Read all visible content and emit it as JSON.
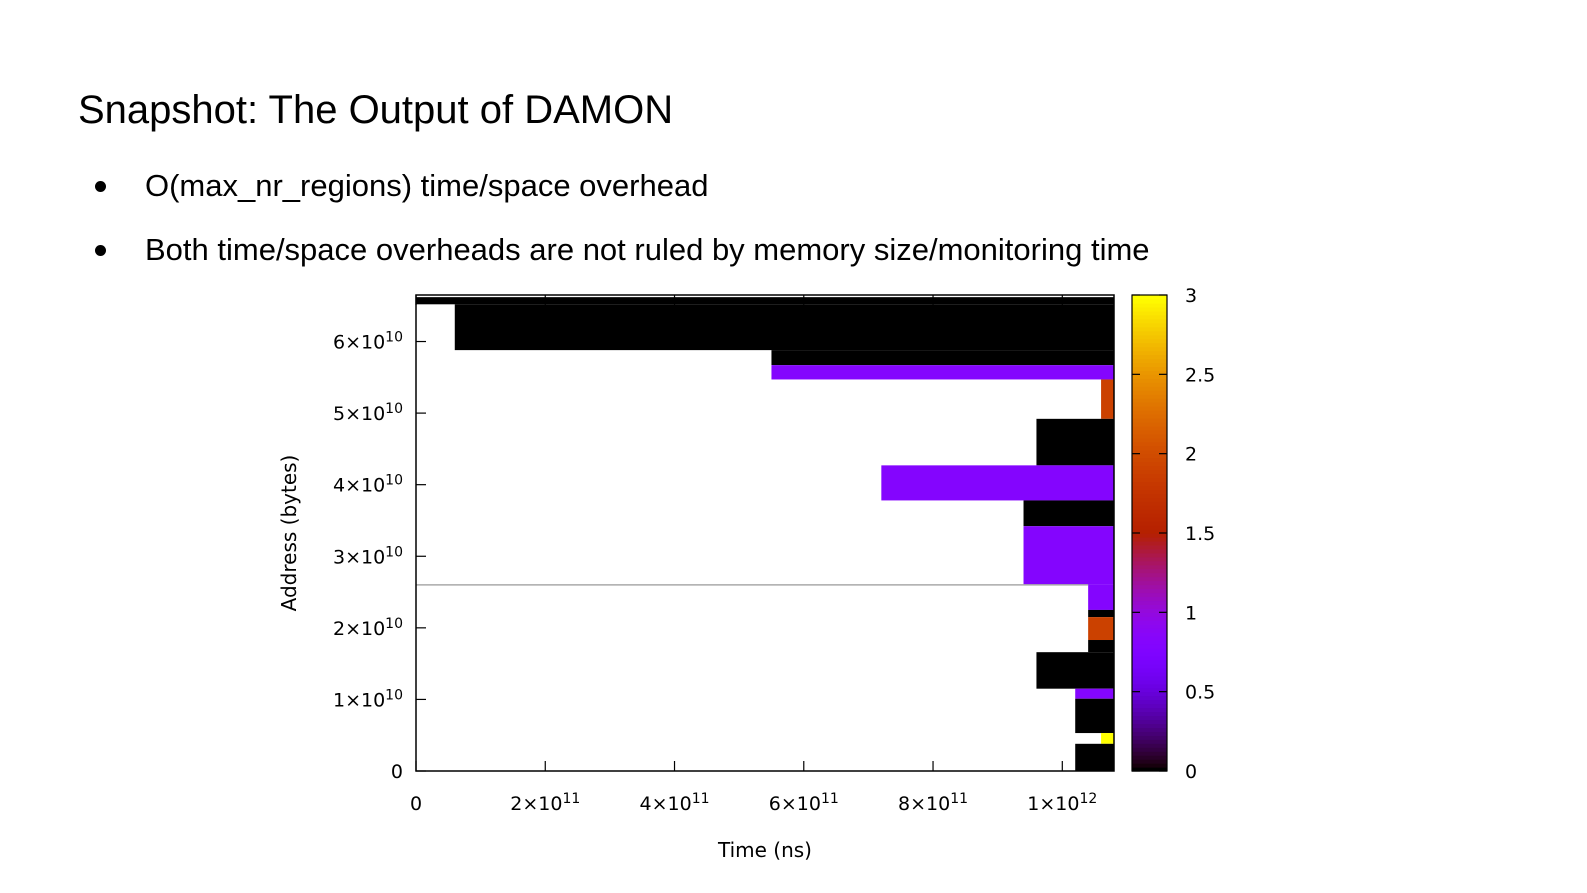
{
  "slide": {
    "title": "Snapshot: The Output of DAMON",
    "bullets": [
      "O(max_nr_regions) time/space overhead",
      "Both time/space overheads are not ruled by memory size/monitoring time"
    ]
  },
  "chart_data": {
    "type": "heatmap",
    "title": "",
    "xlabel": "Time (ns)",
    "ylabel": "Address (bytes)",
    "xlim": [
      0,
      1080000000000.0
    ],
    "ylim": [
      0,
      66500000000.0
    ],
    "x_ticks": [
      {
        "value": 0,
        "base": "0",
        "exp": ""
      },
      {
        "value": 200000000000.0,
        "base": "2×10",
        "exp": "11"
      },
      {
        "value": 400000000000.0,
        "base": "4×10",
        "exp": "11"
      },
      {
        "value": 600000000000.0,
        "base": "6×10",
        "exp": "11"
      },
      {
        "value": 800000000000.0,
        "base": "8×10",
        "exp": "11"
      },
      {
        "value": 1000000000000.0,
        "base": "1×10",
        "exp": "12"
      }
    ],
    "y_ticks": [
      {
        "value": 0,
        "base": "0",
        "exp": ""
      },
      {
        "value": 10000000000.0,
        "base": "1×10",
        "exp": "10"
      },
      {
        "value": 20000000000.0,
        "base": "2×10",
        "exp": "10"
      },
      {
        "value": 30000000000.0,
        "base": "3×10",
        "exp": "10"
      },
      {
        "value": 40000000000.0,
        "base": "4×10",
        "exp": "10"
      },
      {
        "value": 50000000000.0,
        "base": "5×10",
        "exp": "10"
      },
      {
        "value": 60000000000.0,
        "base": "6×10",
        "exp": "10"
      }
    ],
    "colorbar": {
      "range": [
        0,
        3
      ],
      "ticks": [
        {
          "value": 0,
          "label": "0"
        },
        {
          "value": 0.5,
          "label": "0.5"
        },
        {
          "value": 1,
          "label": "1"
        },
        {
          "value": 1.5,
          "label": "1.5"
        },
        {
          "value": 2,
          "label": "2"
        },
        {
          "value": 2.5,
          "label": "2.5"
        },
        {
          "value": 3,
          "label": "3"
        }
      ]
    },
    "cells": [
      {
        "x0": 0.0,
        "x1": 1080000000000.0,
        "y0": 65200000000.0,
        "y1": 66200000000.0,
        "value": 0
      },
      {
        "x0": 60000000000.0,
        "x1": 1080000000000.0,
        "y0": 58800000000.0,
        "y1": 65200000000.0,
        "value": 0
      },
      {
        "x0": 550000000000.0,
        "x1": 1080000000000.0,
        "y0": 56700000000.0,
        "y1": 58800000000.0,
        "value": 0
      },
      {
        "x0": 550000000000.0,
        "x1": 1080000000000.0,
        "y0": 54700000000.0,
        "y1": 56700000000.0,
        "value": 0.8
      },
      {
        "x0": 1060000000000.0,
        "x1": 1080000000000.0,
        "y0": 49200000000.0,
        "y1": 54700000000.0,
        "value": 1.9
      },
      {
        "x0": 960000000000.0,
        "x1": 1080000000000.0,
        "y0": 42700000000.0,
        "y1": 49200000000.0,
        "value": 0
      },
      {
        "x0": 720000000000.0,
        "x1": 1080000000000.0,
        "y0": 37800000000.0,
        "y1": 42700000000.0,
        "value": 0.8
      },
      {
        "x0": 940000000000.0,
        "x1": 1080000000000.0,
        "y0": 34200000000.0,
        "y1": 37800000000.0,
        "value": 0
      },
      {
        "x0": 940000000000.0,
        "x1": 1080000000000.0,
        "y0": 26000000000.0,
        "y1": 34200000000.0,
        "value": 0.8
      },
      {
        "x0": 1040000000000.0,
        "x1": 1080000000000.0,
        "y0": 22500000000.0,
        "y1": 26000000000.0,
        "value": 0.8
      },
      {
        "x0": 1040000000000.0,
        "x1": 1080000000000.0,
        "y0": 21500000000.0,
        "y1": 22500000000.0,
        "value": 0
      },
      {
        "x0": 1040000000000.0,
        "x1": 1080000000000.0,
        "y0": 18300000000.0,
        "y1": 21500000000.0,
        "value": 1.9
      },
      {
        "x0": 1040000000000.0,
        "x1": 1080000000000.0,
        "y0": 16600000000.0,
        "y1": 18300000000.0,
        "value": 0
      },
      {
        "x0": 960000000000.0,
        "x1": 1080000000000.0,
        "y0": 11500000000.0,
        "y1": 16600000000.0,
        "value": 0
      },
      {
        "x0": 1020000000000.0,
        "x1": 1080000000000.0,
        "y0": 10100000000.0,
        "y1": 11500000000.0,
        "value": 0.8
      },
      {
        "x0": 1020000000000.0,
        "x1": 1080000000000.0,
        "y0": 5300000000.0,
        "y1": 10100000000.0,
        "value": 0
      },
      {
        "x0": 1060000000000.0,
        "x1": 1080000000000.0,
        "y0": 3800000000.0,
        "y1": 5300000000.0,
        "value": 3
      },
      {
        "x0": 1020000000000.0,
        "x1": 1080000000000.0,
        "y0": 0.0,
        "y1": 3800000000.0,
        "value": 0
      }
    ],
    "divider": {
      "x0": 0,
      "x1": 1040000000000.0,
      "y": 26000000000.0
    }
  }
}
